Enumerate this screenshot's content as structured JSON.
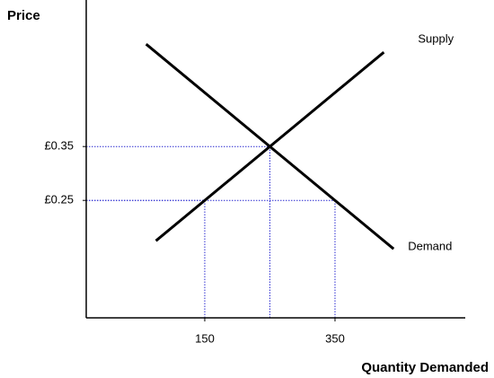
{
  "chart_data": {
    "type": "line",
    "y_label": "Price",
    "x_label": "Quantity Demanded",
    "series": [
      {
        "name": "Supply",
        "color": "#000000",
        "x": [
          75,
          425
        ],
        "values": [
          0.175,
          0.525
        ]
      },
      {
        "name": "Demand",
        "color": "#000000",
        "x": [
          60,
          440
        ],
        "values": [
          0.54,
          0.16
        ]
      }
    ],
    "guides": [
      {
        "x": 250,
        "y": 0.35
      },
      {
        "x": 150,
        "y": 0.25
      },
      {
        "x": 350,
        "y": 0.25
      }
    ],
    "guide_color": "#2a2ad0",
    "xlim": [
      -32,
      550
    ],
    "ylim": [
      0.032,
      0.622
    ],
    "xticks": [
      150,
      350
    ],
    "yticks": [
      {
        "value": 0.35,
        "label": "£0.35"
      },
      {
        "value": 0.25,
        "label": "£0.25"
      }
    ]
  }
}
